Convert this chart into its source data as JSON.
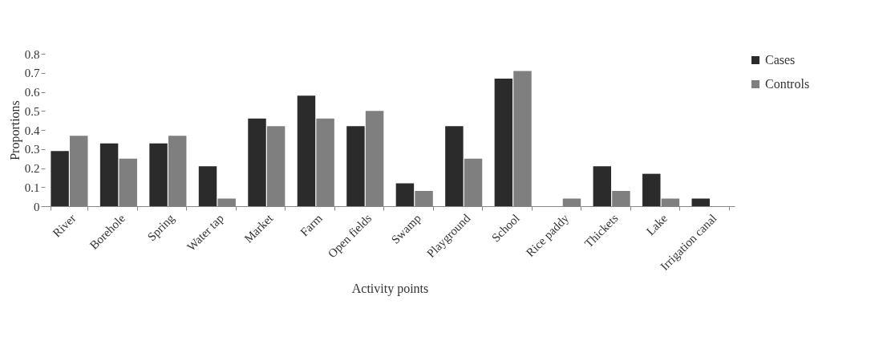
{
  "chart_data": {
    "type": "bar",
    "xlabel": "Activity points",
    "ylabel": "Proportions",
    "categories": [
      "River",
      "Borehole",
      "Spring",
      "Water tap",
      "Market",
      "Farm",
      "Open fields",
      "Swamp",
      "Playground",
      "School",
      "Rice paddy",
      "Thickets",
      "Lake",
      "Irrigation canal"
    ],
    "series": [
      {
        "name": "Cases",
        "color": "#2b2b2b",
        "values": [
          0.29,
          0.33,
          0.33,
          0.21,
          0.46,
          0.58,
          0.42,
          0.12,
          0.42,
          0.67,
          0,
          0.21,
          0.17,
          0.04
        ]
      },
      {
        "name": "Controls",
        "color": "#7f7f7f",
        "values": [
          0.37,
          0.25,
          0.37,
          0.04,
          0.42,
          0.46,
          0.5,
          0.08,
          0.25,
          0.71,
          0.04,
          0.08,
          0.04,
          0
        ]
      }
    ],
    "ylim": [
      0,
      0.8
    ],
    "yticks": [
      0,
      0.1,
      0.2,
      0.3,
      0.4,
      0.5,
      0.6,
      0.7,
      0.8
    ],
    "grid": false,
    "legend": "right"
  }
}
